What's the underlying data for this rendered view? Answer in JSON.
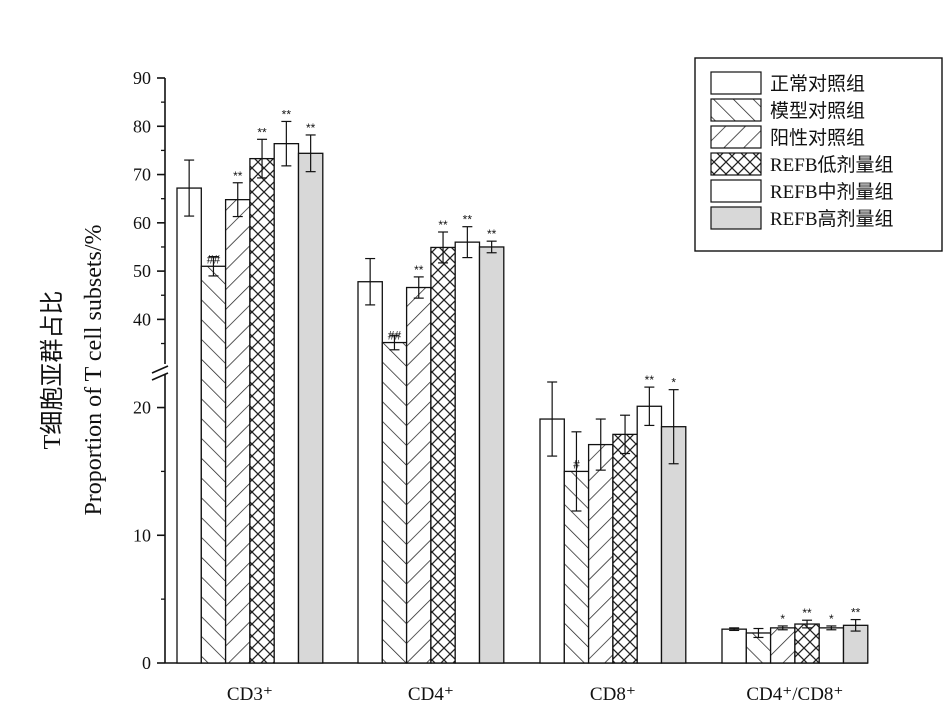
{
  "chart_data": {
    "type": "bar",
    "categories": [
      "CD3⁺",
      "CD4⁺",
      "CD8⁺",
      "CD4⁺/CD8⁺"
    ],
    "ylabel_cn": "T细胞亚群占比",
    "ylabel_en": "Proportion of T cell subsets/%",
    "y_axis_break": {
      "lower": [
        0,
        22
      ],
      "upper": [
        32,
        90
      ]
    },
    "y_ticks": [
      0,
      10,
      20,
      40,
      50,
      60,
      70,
      80,
      90
    ],
    "legend_position": "top-right",
    "series": [
      {
        "name": "正常对照组",
        "pattern": "white",
        "values": [
          67.2,
          47.8,
          19.1,
          2.65
        ],
        "errors": [
          5.8,
          4.8,
          2.9,
          0.1
        ],
        "marks": [
          "",
          "",
          "",
          ""
        ]
      },
      {
        "name": "模型对照组",
        "pattern": "diag-right",
        "values": [
          51.0,
          35.2,
          15.0,
          2.35
        ],
        "errors": [
          2.0,
          1.5,
          3.1,
          0.35
        ],
        "marks": [
          "##",
          "##",
          "#",
          ""
        ]
      },
      {
        "name": "阳性对照组",
        "pattern": "diag-left",
        "values": [
          64.8,
          46.6,
          17.1,
          2.75
        ],
        "errors": [
          3.5,
          2.2,
          2.0,
          0.15
        ],
        "marks": [
          "**",
          "**",
          "",
          "*"
        ]
      },
      {
        "name": "REFB低剂量组",
        "pattern": "cross",
        "values": [
          73.3,
          54.9,
          17.9,
          3.05
        ],
        "errors": [
          4.0,
          3.2,
          1.5,
          0.3
        ],
        "marks": [
          "**",
          "**",
          "",
          "**"
        ]
      },
      {
        "name": "REFB中剂量组",
        "pattern": "white",
        "values": [
          76.4,
          56.0,
          20.1,
          2.75
        ],
        "errors": [
          4.6,
          3.2,
          1.5,
          0.15
        ],
        "marks": [
          "**",
          "**",
          "**",
          "*"
        ]
      },
      {
        "name": "REFB高剂量组",
        "pattern": "gray",
        "values": [
          74.4,
          55.0,
          18.5,
          2.95
        ],
        "errors": [
          3.8,
          1.2,
          2.9,
          0.45
        ],
        "marks": [
          "**",
          "**",
          "*",
          "**"
        ]
      }
    ]
  }
}
